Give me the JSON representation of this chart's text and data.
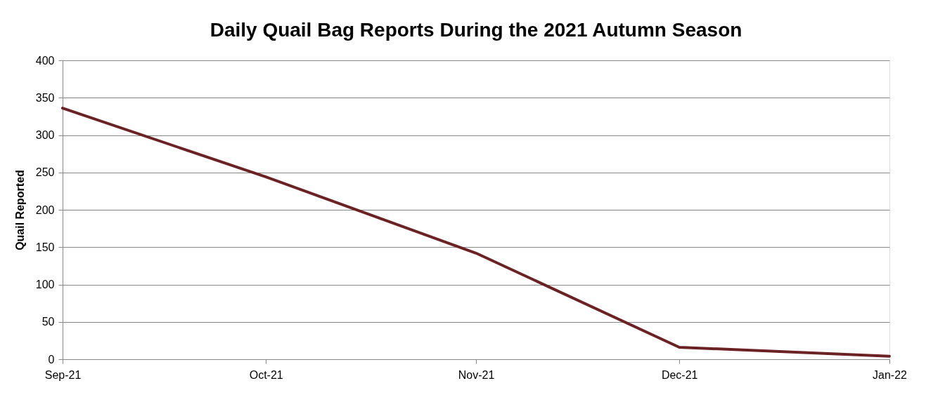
{
  "chart_data": {
    "type": "line",
    "title": "Daily Quail Bag Reports During the 2021 Autumn Season",
    "ylabel": "Quail Reported",
    "x": [
      "2021-09-01",
      "2021-10-01",
      "2021-11-01",
      "2021-12-01",
      "2022-01-01"
    ],
    "series": [
      {
        "color": "#6b2224",
        "values": [
          336,
          244,
          142,
          16,
          4
        ]
      }
    ],
    "xlim": [
      "2021-09-01",
      "2022-01-01"
    ],
    "xticks": [
      {
        "value": "2021-09-01",
        "label": "Sep-21"
      },
      {
        "value": "2021-10-01",
        "label": "Oct-21"
      },
      {
        "value": "2021-11-01",
        "label": "Nov-21"
      },
      {
        "value": "2021-12-01",
        "label": "Dec-21"
      },
      {
        "value": "2022-01-01",
        "label": "Jan-22"
      }
    ],
    "ylim": [
      0,
      400
    ],
    "yticks": [
      0,
      50,
      100,
      150,
      200,
      250,
      300,
      350,
      400
    ],
    "grid": "y",
    "marker": "none",
    "line_style": "solid"
  }
}
